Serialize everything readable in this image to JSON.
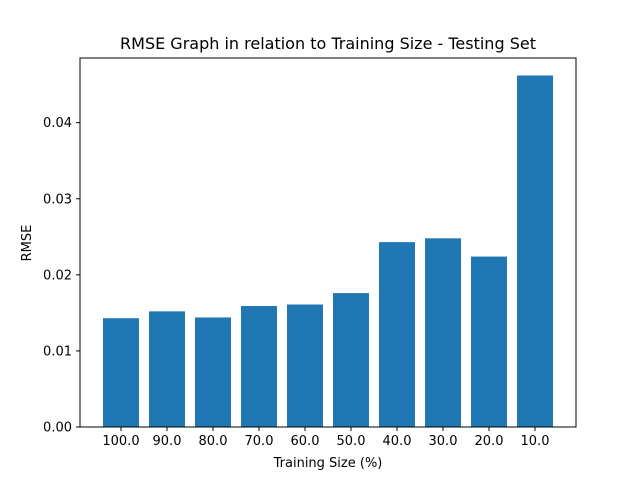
{
  "chart_data": {
    "type": "bar",
    "title": "RMSE Graph in relation to Training Size - Testing Set",
    "xlabel": "Training Size (%)",
    "ylabel": "RMSE",
    "categories": [
      "100.0",
      "90.0",
      "80.0",
      "70.0",
      "60.0",
      "50.0",
      "40.0",
      "30.0",
      "20.0",
      "10.0"
    ],
    "values": [
      0.0143,
      0.0152,
      0.0144,
      0.0159,
      0.0161,
      0.0176,
      0.0243,
      0.0248,
      0.0224,
      0.0462
    ],
    "ylim": [
      0,
      0.0485
    ],
    "yticks": [
      "0.00",
      "0.01",
      "0.02",
      "0.03",
      "0.04"
    ],
    "ytick_values": [
      0,
      0.01,
      0.02,
      0.03,
      0.04
    ],
    "grid": false,
    "legend": "none",
    "bar_color": "#1f77b4"
  }
}
